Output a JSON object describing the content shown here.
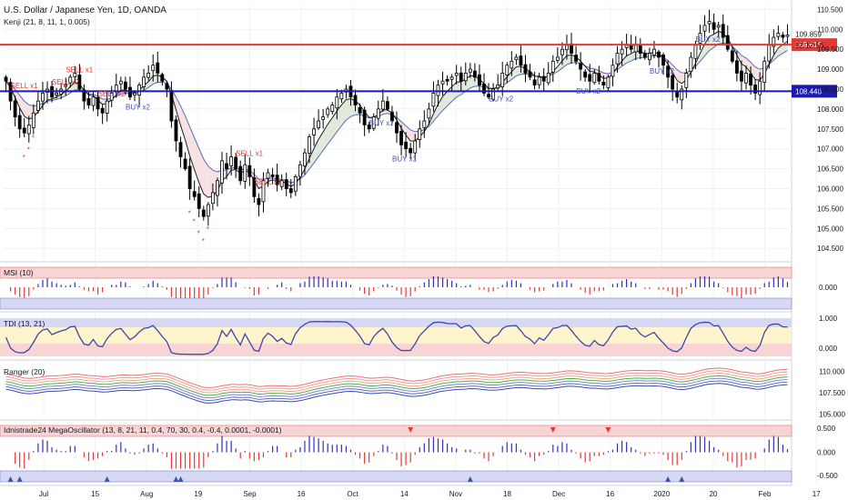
{
  "header": {
    "title": "U.S. Dollar / Japanese Yen, 1D, OANDA",
    "indicator": "Kenji (21, 8, 11, 1, 0.005)"
  },
  "price_axis": {
    "ticks": [
      "110.500",
      "110.000",
      "109.500",
      "109.000",
      "108.500",
      "108.000",
      "107.500",
      "107.000",
      "106.500",
      "106.000",
      "105.500",
      "105.000",
      "104.500"
    ],
    "last_price": "109.859",
    "countdown": "12:12:56",
    "resistance_label": "109.615",
    "support_label": "108.446",
    "resistance_color": "#e53935",
    "support_color": "#1a1ab0"
  },
  "time_axis": {
    "labels": [
      "Jul",
      "15",
      "Aug",
      "19",
      "Sep",
      "16",
      "Oct",
      "14",
      "Nov",
      "18",
      "Dec",
      "16",
      "2020",
      "20",
      "Feb",
      "17"
    ]
  },
  "signals": {
    "sell": [
      {
        "text": "SELL x1"
      },
      {
        "text": "SELL x2"
      },
      {
        "text": "SELL x1"
      },
      {
        "text": "SELL x2"
      },
      {
        "text": "SELL x1"
      },
      {
        "text": "SELL x1"
      }
    ],
    "buy": [
      {
        "text": "BUY x2"
      },
      {
        "text": "BUY x2"
      },
      {
        "text": "BUY x1"
      },
      {
        "text": "BUY x1"
      },
      {
        "text": "BUY x2"
      },
      {
        "text": "BUY x2"
      },
      {
        "text": "BUY x2"
      }
    ]
  },
  "panes": {
    "msi": {
      "label": "MSI (10)",
      "ticks": [
        "0.000"
      ]
    },
    "tdi": {
      "label": "TDI (13, 21)",
      "ticks": [
        "1.000",
        "0.000"
      ]
    },
    "ranger": {
      "label": "Ranger (20)",
      "ticks": [
        "110.000",
        "107.500",
        "105.000"
      ]
    },
    "mega": {
      "label": "Idnistrade24 MegaOscillator (13, 8, 21, 11, 0.4, 70, 30, 0.4, -0.4, 0.0001, -0.0001)",
      "ticks": [
        "0.500",
        "0.000",
        "-0.500"
      ]
    }
  },
  "colors": {
    "bull": "#ffffff",
    "bear": "#000000",
    "ema_fast": "#1e1e1e",
    "ema_slow": "#5c6bc0",
    "sell": "#e53935",
    "buy": "#3f51b5",
    "up_bar": "#3030c0",
    "down_bar": "#e53935",
    "zone_red": "#f8d4d4",
    "zone_blue": "#d6d8f4",
    "zone_yellow": "#fff4cc"
  },
  "chart_data": {
    "type": "candlestick",
    "title": "U.S. Dollar / Japanese Yen, 1D, OANDA",
    "y_range": [
      104.3,
      110.6
    ],
    "support": 108.446,
    "resistance": 109.615,
    "last": 109.859,
    "closes": [
      108.7,
      108.2,
      107.8,
      107.5,
      107.4,
      107.6,
      107.9,
      108.2,
      108.4,
      108.5,
      108.3,
      108.4,
      108.5,
      108.6,
      108.8,
      108.9,
      108.5,
      108.2,
      108.1,
      108.3,
      108.0,
      107.9,
      108.2,
      108.4,
      108.6,
      108.7,
      108.5,
      108.3,
      108.4,
      108.6,
      108.8,
      108.9,
      109.1,
      108.9,
      108.7,
      108.5,
      107.7,
      107.2,
      106.8,
      106.5,
      106.0,
      105.8,
      105.5,
      105.3,
      105.6,
      105.9,
      106.2,
      106.7,
      106.5,
      106.8,
      106.5,
      106.2,
      106.6,
      106.3,
      105.8,
      105.6,
      106.2,
      106.4,
      106.3,
      106.1,
      106.2,
      106.0,
      105.9,
      106.3,
      106.6,
      106.9,
      107.3,
      107.5,
      107.7,
      107.8,
      108.0,
      108.1,
      108.3,
      108.4,
      108.5,
      108.3,
      108.1,
      107.9,
      107.6,
      107.5,
      107.8,
      108.0,
      108.2,
      108.0,
      107.7,
      107.4,
      107.1,
      107.0,
      106.9,
      107.2,
      107.5,
      107.7,
      108.0,
      108.4,
      108.6,
      108.7,
      108.7,
      108.8,
      108.9,
      108.7,
      108.9,
      109.0,
      108.8,
      108.6,
      108.4,
      108.3,
      108.5,
      108.6,
      108.9,
      109.1,
      109.2,
      109.3,
      109.1,
      108.9,
      108.8,
      108.6,
      108.8,
      108.7,
      108.9,
      109.2,
      109.3,
      109.5,
      109.6,
      109.4,
      109.2,
      109.0,
      108.8,
      108.7,
      108.9,
      108.7,
      108.6,
      108.8,
      109.1,
      109.4,
      109.5,
      109.6,
      109.5,
      109.6,
      109.4,
      109.3,
      109.4,
      109.5,
      109.3,
      109.1,
      108.8,
      108.5,
      108.3,
      108.5,
      108.9,
      109.3,
      109.6,
      109.9,
      110.1,
      110.2,
      110.0,
      110.1,
      109.8,
      109.5,
      109.2,
      108.9,
      108.7,
      108.9,
      108.6,
      108.4,
      108.7,
      109.2,
      109.6,
      109.8,
      109.9,
      109.8,
      109.86
    ]
  }
}
